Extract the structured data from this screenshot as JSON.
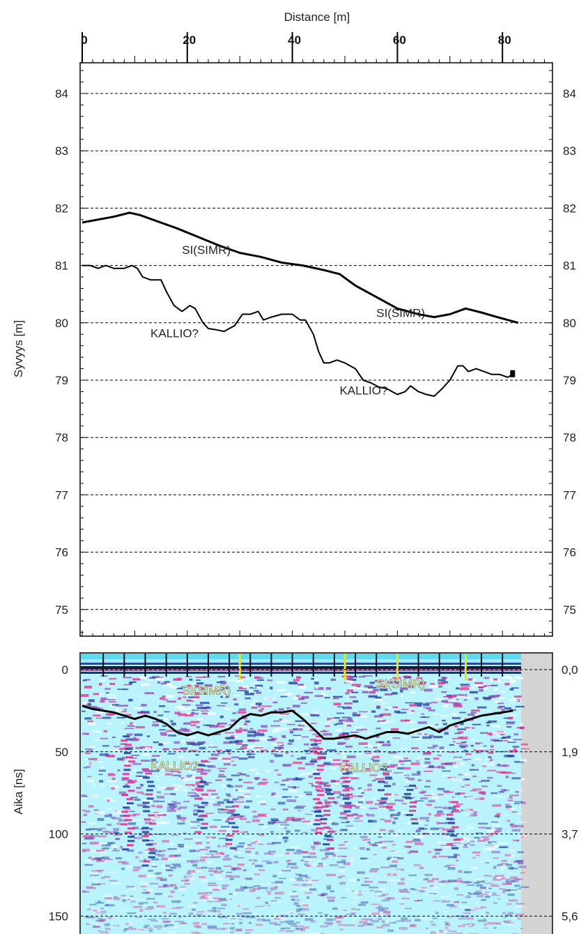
{
  "chart_data": [
    {
      "type": "line",
      "xlabel": "Distance [m]",
      "ylabel": "Syvyys [m]",
      "xlim": [
        0,
        85
      ],
      "ylim": [
        74.5,
        84.5
      ],
      "x_ticks": [
        0,
        20,
        40,
        60,
        80
      ],
      "y_ticks": [
        75,
        76,
        77,
        78,
        79,
        80,
        81,
        82,
        83,
        84
      ],
      "grid": "horizontal dashed",
      "series": [
        {
          "name": "",
          "color": "#000000",
          "x": [
            0,
            3,
            6,
            9,
            11,
            14,
            18,
            22,
            26,
            30,
            34,
            38,
            42,
            46,
            49,
            52,
            56,
            60,
            64,
            67,
            70,
            73,
            76,
            79,
            83
          ],
          "y": [
            81.75,
            81.8,
            81.85,
            81.92,
            81.88,
            81.78,
            81.65,
            81.5,
            81.35,
            81.22,
            81.15,
            81.05,
            81.0,
            80.92,
            80.85,
            80.65,
            80.45,
            80.25,
            80.15,
            80.1,
            80.15,
            80.25,
            80.18,
            80.1,
            80.0
          ]
        },
        {
          "name": "",
          "color": "#000000",
          "x": [
            0,
            1.5,
            3,
            4.5,
            6,
            8,
            9.5,
            10.5,
            11.5,
            13,
            15,
            16,
            17.5,
            19,
            20.5,
            21.5,
            23,
            24,
            25.5,
            27,
            29,
            30.5,
            32,
            33.5,
            34.5,
            36,
            38,
            40,
            41.5,
            42.5,
            44,
            45,
            46,
            47,
            48.5,
            50,
            52,
            53.5,
            55,
            56.5,
            58,
            60,
            61.5,
            62.5,
            64,
            65.5,
            67,
            68.5,
            70,
            71.5,
            72.5,
            73.5,
            75,
            76.5,
            78,
            79.5,
            81,
            82
          ],
          "y": [
            81.0,
            81.0,
            80.95,
            81.0,
            80.95,
            80.95,
            81.0,
            80.95,
            80.8,
            80.75,
            80.75,
            80.55,
            80.3,
            80.2,
            80.3,
            80.25,
            80.0,
            79.9,
            79.88,
            79.85,
            79.95,
            80.15,
            80.15,
            80.2,
            80.05,
            80.1,
            80.15,
            80.15,
            80.05,
            80.05,
            79.8,
            79.5,
            79.3,
            79.3,
            79.35,
            79.3,
            79.2,
            79.0,
            78.95,
            78.88,
            78.85,
            78.75,
            78.8,
            78.9,
            78.8,
            78.75,
            78.72,
            78.85,
            79.0,
            79.25,
            79.25,
            79.15,
            79.2,
            79.15,
            79.1,
            79.1,
            79.05,
            79.1
          ]
        }
      ],
      "annotations": [
        {
          "text": "SI(SIMR)",
          "x": 19,
          "y": 81.2
        },
        {
          "text": "SI(SIMR)",
          "x": 56,
          "y": 80.1
        },
        {
          "text": "KALLIO?",
          "x": 13,
          "y": 79.75
        },
        {
          "text": "KALLIO?",
          "x": 49,
          "y": 78.75
        }
      ]
    },
    {
      "type": "heatmap",
      "xlabel": "",
      "ylabel": "Aika [ns]",
      "xlim": [
        0,
        85
      ],
      "ylim": [
        0,
        155
      ],
      "y_ticks_left": [
        0,
        50,
        100,
        150
      ],
      "y_ticks_right": [
        "0,0",
        "1,9",
        "3,7",
        "5,6"
      ],
      "grid": "horizontal dashed",
      "colors": {
        "background": "#b9f3fb",
        "positive": "#e62a8c",
        "negative": "#1f3aa0",
        "no_data": "#d4d4d4"
      },
      "yellow_markers_x": [
        30,
        50,
        60,
        73
      ],
      "series": [
        {
          "name": "",
          "color": "#000000",
          "x": [
            0,
            2,
            4,
            6,
            8,
            10,
            12,
            14,
            16,
            18,
            20,
            22,
            24,
            26,
            28,
            30,
            32,
            34,
            36,
            38,
            40,
            42,
            44,
            46,
            48,
            50,
            52,
            54,
            56,
            58,
            60,
            62,
            64,
            66,
            68,
            70,
            72,
            74,
            76,
            78,
            80,
            82
          ],
          "y": [
            22,
            24,
            25,
            26,
            28,
            30,
            28,
            30,
            33,
            38,
            40,
            38,
            40,
            38,
            36,
            30,
            27,
            28,
            26,
            26,
            25,
            30,
            36,
            42,
            42,
            41,
            40,
            42,
            40,
            38,
            38,
            39,
            37,
            35,
            38,
            34,
            32,
            30,
            28,
            27,
            26,
            25
          ]
        }
      ],
      "annotations": [
        {
          "text": "SI(SIMR)",
          "x": 19,
          "y": 15
        },
        {
          "text": "SI(SIMR)",
          "x": 56,
          "y": 11
        },
        {
          "text": "KALLIO?",
          "x": 13,
          "y": 61
        },
        {
          "text": "KALLIO?",
          "x": 49,
          "y": 62
        }
      ]
    }
  ]
}
